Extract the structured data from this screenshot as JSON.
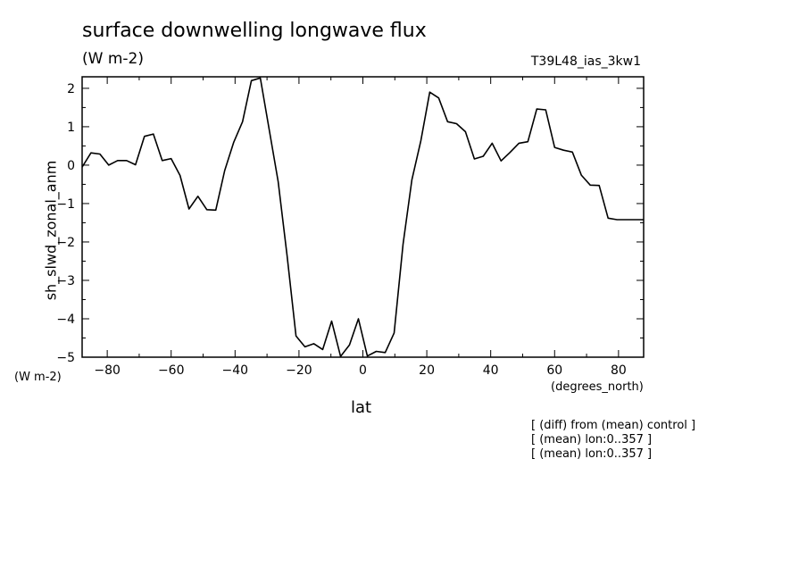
{
  "chart_data": {
    "type": "line",
    "title": "surface downwelling longwave flux",
    "subtitle": "(W m-2)",
    "run_label": "T39L48_ias_3kw1",
    "ylabel": "sh_slwd_zonal_anm",
    "yunits": "(W m-2)",
    "xlabel": "lat",
    "xunits": "(degrees_north)",
    "xlim": [
      -87.86,
      87.86
    ],
    "ylim": [
      -5,
      2.3
    ],
    "xticks": [
      -80,
      -60,
      -40,
      -20,
      0,
      20,
      40,
      60,
      80
    ],
    "yticks": [
      -5,
      -4,
      -3,
      -2,
      -1,
      0,
      1,
      2
    ],
    "grid": false,
    "x": [
      -87.86,
      -85.1,
      -82.31,
      -79.53,
      -76.74,
      -73.95,
      -71.16,
      -68.37,
      -65.58,
      -62.79,
      -60.0,
      -57.21,
      -54.42,
      -51.63,
      -48.84,
      -46.04,
      -43.25,
      -40.46,
      -37.67,
      -34.88,
      -32.09,
      -29.3,
      -26.51,
      -23.72,
      -20.93,
      -18.14,
      -15.35,
      -12.56,
      -9.77,
      -6.98,
      -4.19,
      -1.4,
      1.4,
      4.19,
      6.98,
      9.77,
      12.56,
      15.35,
      18.14,
      20.93,
      23.72,
      26.51,
      29.3,
      32.09,
      34.88,
      37.67,
      40.46,
      43.25,
      46.04,
      48.84,
      51.63,
      54.42,
      57.21,
      60.0,
      62.79,
      65.58,
      68.37,
      71.16,
      73.95,
      76.74,
      79.53,
      82.31,
      85.1,
      87.86
    ],
    "values": [
      -0.05,
      0.32,
      0.29,
      0.0,
      0.12,
      0.12,
      0.01,
      0.75,
      0.81,
      0.12,
      0.17,
      -0.27,
      -1.14,
      -0.81,
      -1.16,
      -1.17,
      -0.14,
      0.59,
      1.13,
      2.2,
      2.27,
      0.92,
      -0.43,
      -2.36,
      -4.45,
      -4.73,
      -4.65,
      -4.8,
      -4.06,
      -4.98,
      -4.68,
      -4.0,
      -4.97,
      -4.85,
      -4.88,
      -4.37,
      -2.06,
      -0.38,
      0.63,
      1.9,
      1.75,
      1.13,
      1.08,
      0.87,
      0.16,
      0.23,
      0.57,
      0.11,
      0.33,
      0.57,
      0.61,
      1.46,
      1.44,
      0.46,
      0.39,
      0.34,
      -0.26,
      -0.52,
      -0.53,
      -1.38,
      -1.42,
      -1.42,
      -1.42,
      -1.42
    ],
    "line_color": "#000000"
  },
  "notes": [
    "[ (diff) from (mean) control ]",
    "[ (mean) lon:0..357 ]",
    "[ (mean) lon:0..357 ]"
  ]
}
